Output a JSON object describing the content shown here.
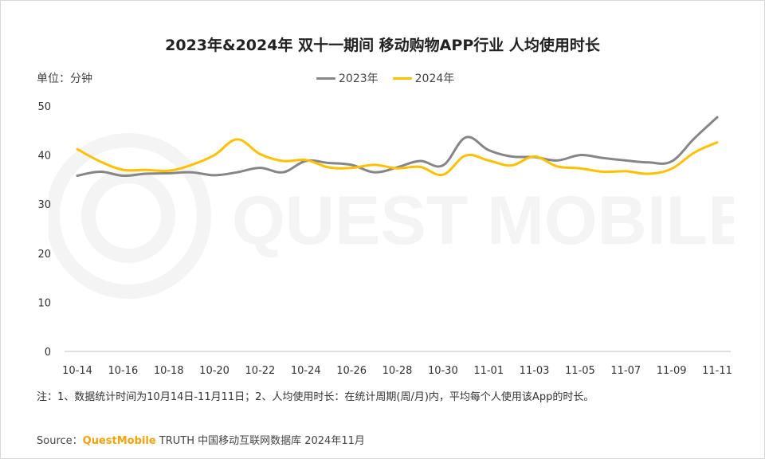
{
  "chart_data": {
    "type": "line",
    "title": "2023年&2024年 双十一期间 移动购物APP行业 人均使用时长",
    "unit_label": "单位：分钟",
    "ylim": [
      0,
      50
    ],
    "yticks": [
      "0",
      "10",
      "20",
      "30",
      "40",
      "50"
    ],
    "x": [
      "10-14",
      "10-15",
      "10-16",
      "10-17",
      "10-18",
      "10-19",
      "10-20",
      "10-21",
      "10-22",
      "10-23",
      "10-24",
      "10-25",
      "10-26",
      "10-27",
      "10-28",
      "10-29",
      "10-30",
      "10-31",
      "11-01",
      "11-02",
      "11-03",
      "11-04",
      "11-05",
      "11-06",
      "11-07",
      "11-08",
      "11-09",
      "11-10",
      "11-11"
    ],
    "xtick_labels": [
      "10-14",
      "10-16",
      "10-18",
      "10-20",
      "10-22",
      "10-24",
      "10-26",
      "10-28",
      "10-30",
      "11-01",
      "11-03",
      "11-05",
      "11-07",
      "11-09",
      "11-11"
    ],
    "legend_position": "top-center",
    "grid": false,
    "series": [
      {
        "name": "2023年",
        "color": "#868686",
        "values": [
          35.8,
          36.6,
          35.8,
          36.2,
          36.3,
          36.5,
          35.9,
          36.5,
          37.4,
          36.5,
          38.8,
          38.4,
          38.0,
          36.5,
          37.5,
          38.8,
          37.9,
          43.6,
          41.0,
          39.7,
          39.6,
          38.9,
          40.0,
          39.4,
          38.9,
          38.5,
          38.7,
          43.4,
          47.7
        ]
      },
      {
        "name": "2024年",
        "color": "#ffc000",
        "values": [
          41.2,
          38.7,
          37.0,
          37.0,
          36.8,
          38.0,
          40.0,
          43.2,
          40.2,
          38.8,
          39.0,
          37.5,
          37.4,
          38.0,
          37.3,
          37.6,
          36.0,
          39.9,
          38.9,
          37.9,
          39.7,
          37.7,
          37.3,
          36.6,
          36.7,
          36.2,
          37.2,
          40.5,
          42.6
        ]
      }
    ]
  },
  "watermark": "QUEST MOBILE",
  "note": "注：1、数据统计时间为10月14日-11月11日；2、人均使用时长：在统计周期(周/月)内，平均每个人使用该App的时长。",
  "source": {
    "prefix": "Source：",
    "brand": "QuestMobile",
    "rest": " TRUTH 中国移动互联网数据库 2024年11月"
  }
}
